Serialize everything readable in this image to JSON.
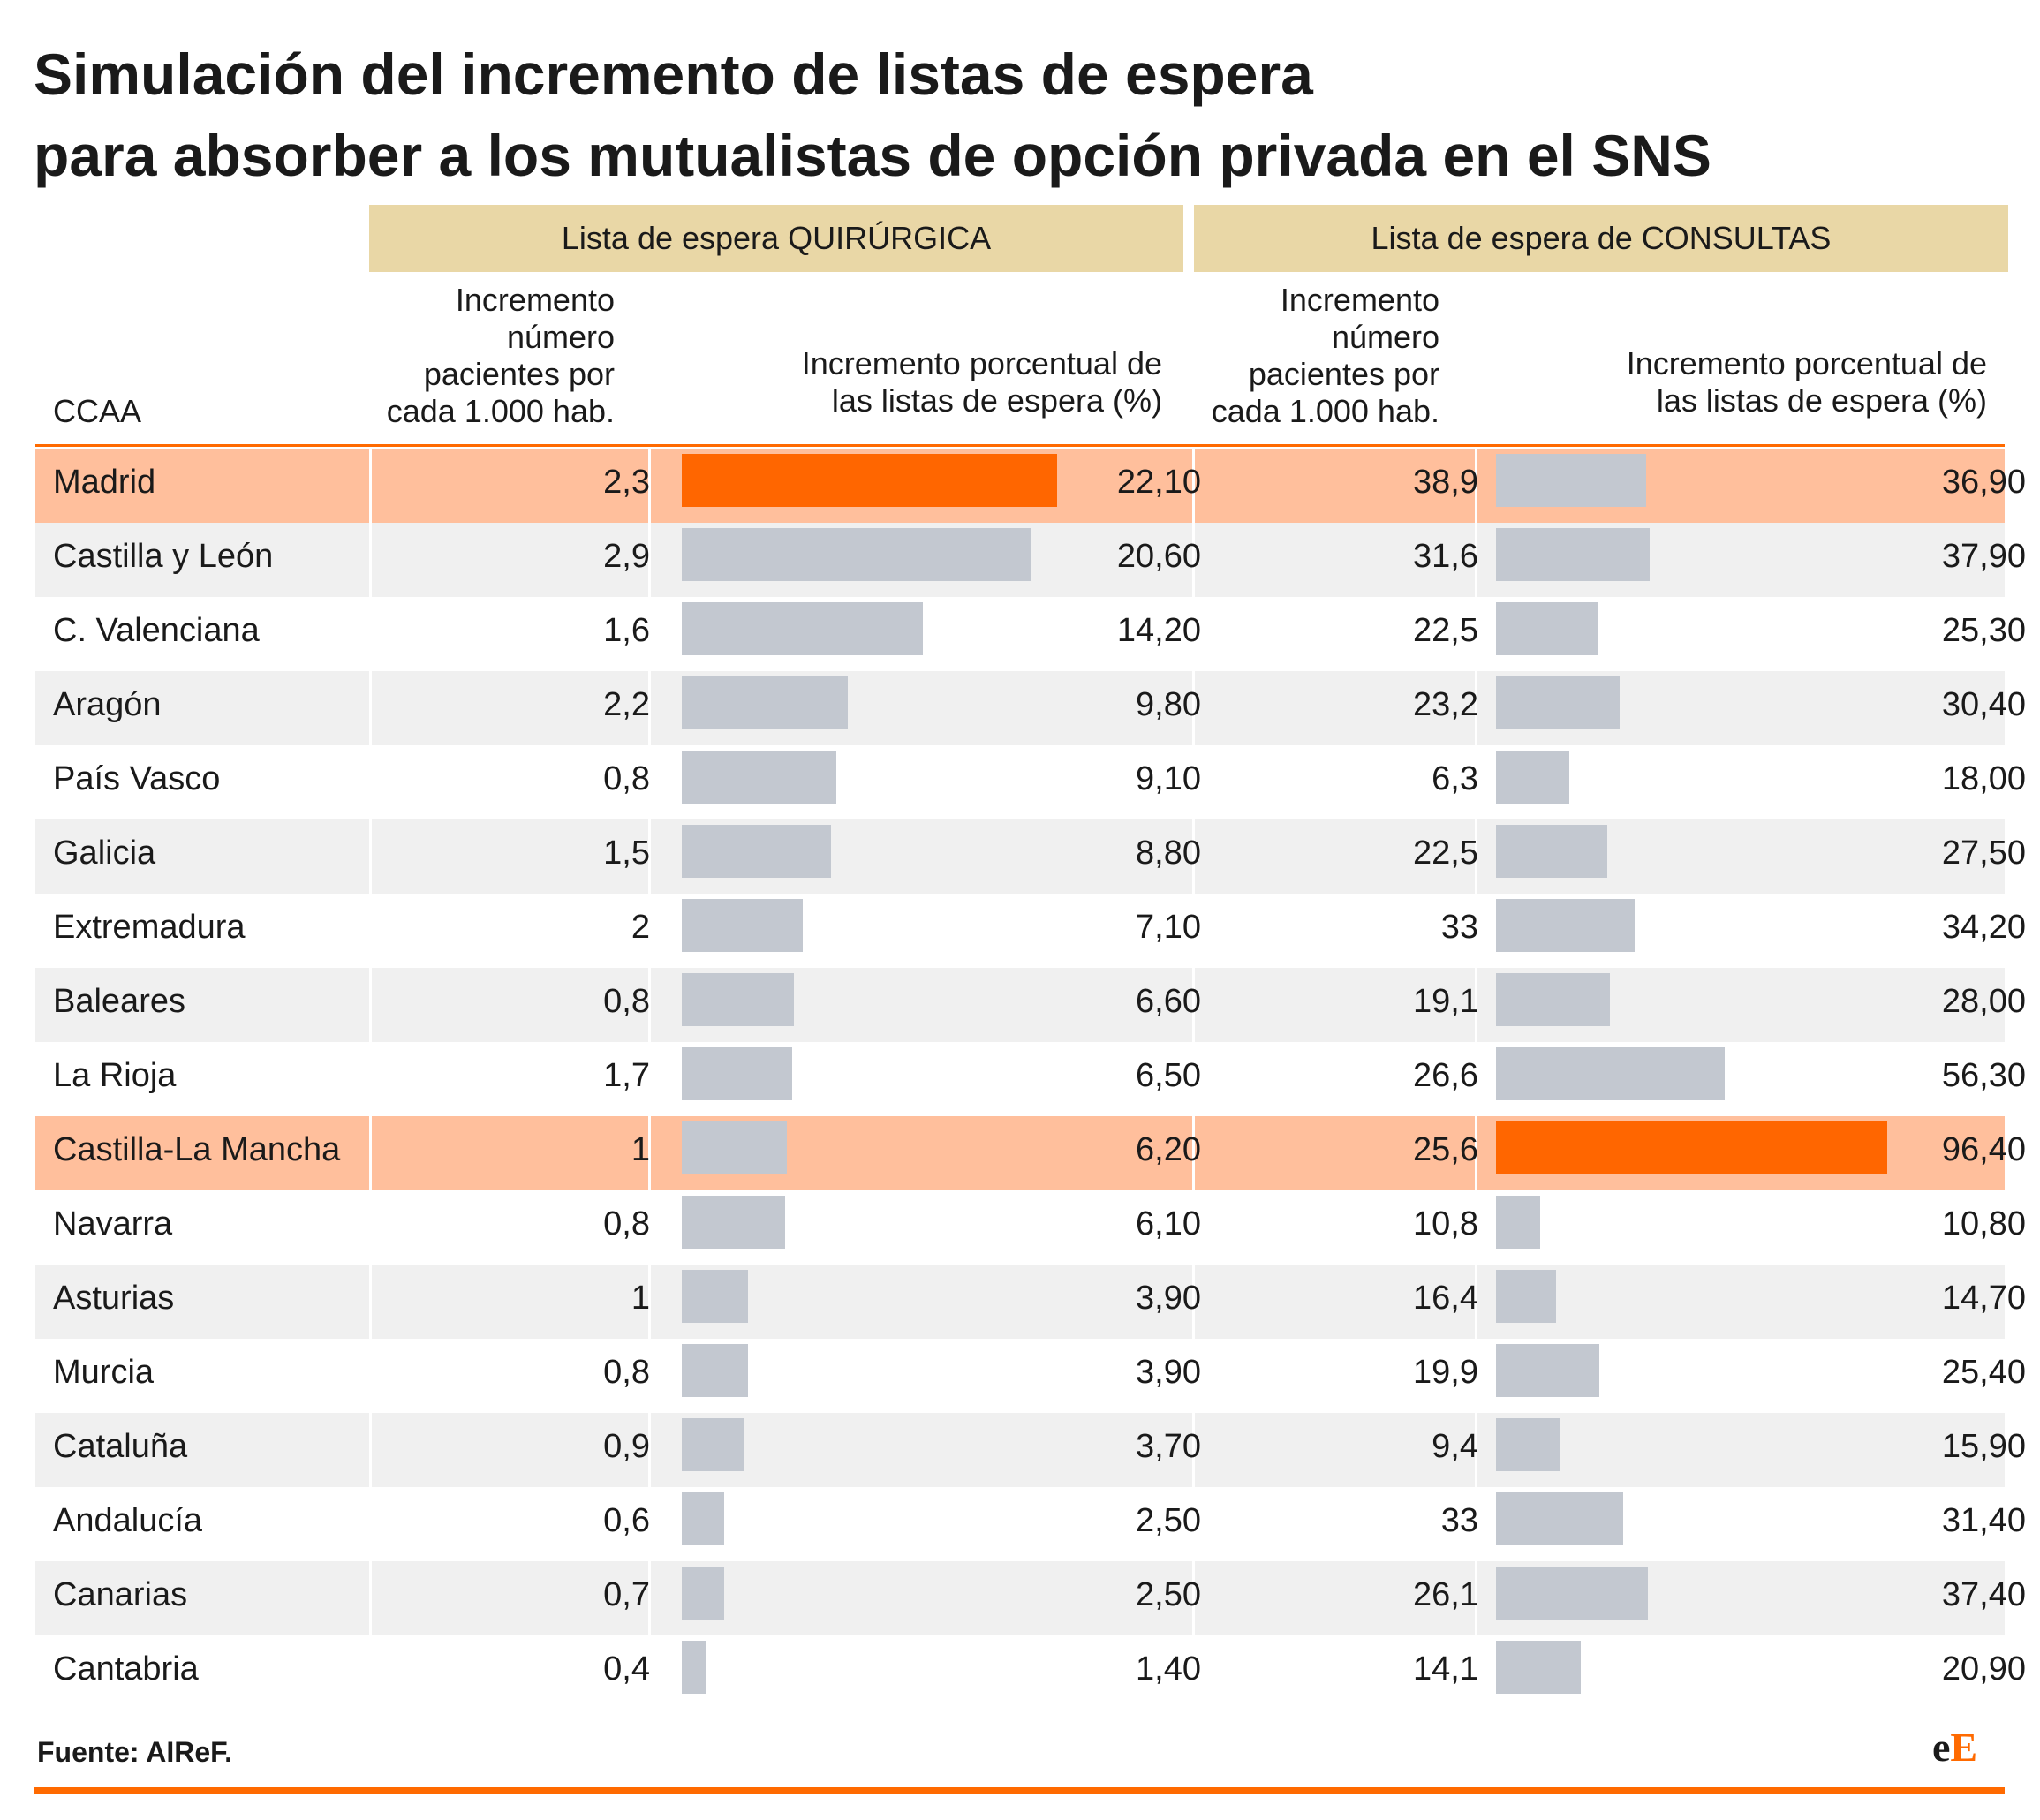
{
  "title": {
    "line1": "Simulación del incremento de listas de espera",
    "line2": "para absorber a los mutualistas de opción privada en el SNS"
  },
  "groups": {
    "quirurgica": "Lista de espera QUIRÚRGICA",
    "consultas": "Lista de espera de CONSULTAS"
  },
  "columns": {
    "ccaa": "CCAA",
    "incremento_pacientes": [
      "Incremento",
      "número",
      "pacientes por",
      "cada 1.000 hab."
    ],
    "incremento_porcentual": [
      "Incremento porcentual de",
      "las listas de espera (%)"
    ]
  },
  "chart_data": {
    "type": "table",
    "title": "Simulación del incremento de listas de espera para absorber a los mutualistas de opción privada en el SNS",
    "columns": [
      "CCAA",
      "Quirúrgica: incremento número pacientes por cada 1.000 hab.",
      "Quirúrgica: incremento porcentual (%)",
      "Consultas: incremento número pacientes por cada 1.000 hab.",
      "Consultas: incremento porcentual (%)"
    ],
    "quir_pct_max": 22.1,
    "cons_pct_max": 96.4,
    "rows": [
      {
        "ccaa": "Madrid",
        "quir_pac": "2,3",
        "quir_pct": 22.1,
        "quir_pct_label": "22,10",
        "cons_pac": "38,9",
        "cons_pct": 36.9,
        "cons_pct_label": "36,90",
        "highlight": true,
        "hot": "quir"
      },
      {
        "ccaa": "Castilla y León",
        "quir_pac": "2,9",
        "quir_pct": 20.6,
        "quir_pct_label": "20,60",
        "cons_pac": "31,6",
        "cons_pct": 37.9,
        "cons_pct_label": "37,90"
      },
      {
        "ccaa": "C. Valenciana",
        "quir_pac": "1,6",
        "quir_pct": 14.2,
        "quir_pct_label": "14,20",
        "cons_pac": "22,5",
        "cons_pct": 25.3,
        "cons_pct_label": "25,30"
      },
      {
        "ccaa": "Aragón",
        "quir_pac": "2,2",
        "quir_pct": 9.8,
        "quir_pct_label": "9,80",
        "cons_pac": "23,2",
        "cons_pct": 30.4,
        "cons_pct_label": "30,40"
      },
      {
        "ccaa": "País Vasco",
        "quir_pac": "0,8",
        "quir_pct": 9.1,
        "quir_pct_label": "9,10",
        "cons_pac": "6,3",
        "cons_pct": 18.0,
        "cons_pct_label": "18,00"
      },
      {
        "ccaa": "Galicia",
        "quir_pac": "1,5",
        "quir_pct": 8.8,
        "quir_pct_label": "8,80",
        "cons_pac": "22,5",
        "cons_pct": 27.5,
        "cons_pct_label": "27,50"
      },
      {
        "ccaa": "Extremadura",
        "quir_pac": "2",
        "quir_pct": 7.1,
        "quir_pct_label": "7,10",
        "cons_pac": "33",
        "cons_pct": 34.2,
        "cons_pct_label": "34,20"
      },
      {
        "ccaa": "Baleares",
        "quir_pac": "0,8",
        "quir_pct": 6.6,
        "quir_pct_label": "6,60",
        "cons_pac": "19,1",
        "cons_pct": 28.0,
        "cons_pct_label": "28,00"
      },
      {
        "ccaa": "La Rioja",
        "quir_pac": "1,7",
        "quir_pct": 6.5,
        "quir_pct_label": "6,50",
        "cons_pac": "26,6",
        "cons_pct": 56.3,
        "cons_pct_label": "56,30"
      },
      {
        "ccaa": "Castilla-La Mancha",
        "quir_pac": "1",
        "quir_pct": 6.2,
        "quir_pct_label": "6,20",
        "cons_pac": "25,6",
        "cons_pct": 96.4,
        "cons_pct_label": "96,40",
        "highlight": true,
        "hot": "cons"
      },
      {
        "ccaa": "Navarra",
        "quir_pac": "0,8",
        "quir_pct": 6.1,
        "quir_pct_label": "6,10",
        "cons_pac": "10,8",
        "cons_pct": 10.8,
        "cons_pct_label": "10,80"
      },
      {
        "ccaa": "Asturias",
        "quir_pac": "1",
        "quir_pct": 3.9,
        "quir_pct_label": "3,90",
        "cons_pac": "16,4",
        "cons_pct": 14.7,
        "cons_pct_label": "14,70"
      },
      {
        "ccaa": "Murcia",
        "quir_pac": "0,8",
        "quir_pct": 3.9,
        "quir_pct_label": "3,90",
        "cons_pac": "19,9",
        "cons_pct": 25.4,
        "cons_pct_label": "25,40"
      },
      {
        "ccaa": "Cataluña",
        "quir_pac": "0,9",
        "quir_pct": 3.7,
        "quir_pct_label": "3,70",
        "cons_pac": "9,4",
        "cons_pct": 15.9,
        "cons_pct_label": "15,90"
      },
      {
        "ccaa": "Andalucía",
        "quir_pac": "0,6",
        "quir_pct": 2.5,
        "quir_pct_label": "2,50",
        "cons_pac": "33",
        "cons_pct": 31.4,
        "cons_pct_label": "31,40"
      },
      {
        "ccaa": "Canarias",
        "quir_pac": "0,7",
        "quir_pct": 2.5,
        "quir_pct_label": "2,50",
        "cons_pac": "26,1",
        "cons_pct": 37.4,
        "cons_pct_label": "37,40"
      },
      {
        "ccaa": "Cantabria",
        "quir_pac": "0,4",
        "quir_pct": 1.4,
        "quir_pct_label": "1,40",
        "cons_pac": "14,1",
        "cons_pct": 20.9,
        "cons_pct_label": "20,90"
      }
    ]
  },
  "source": "Fuente: AIReF.",
  "logo": {
    "lower": "e",
    "upper": "E"
  },
  "colors": {
    "accent": "#ff6600",
    "highlight_row": "#ffbf9c",
    "shaded_row": "#f0f0f0",
    "bar": "#c3c8d0",
    "group_header": "#e9d7a6"
  }
}
